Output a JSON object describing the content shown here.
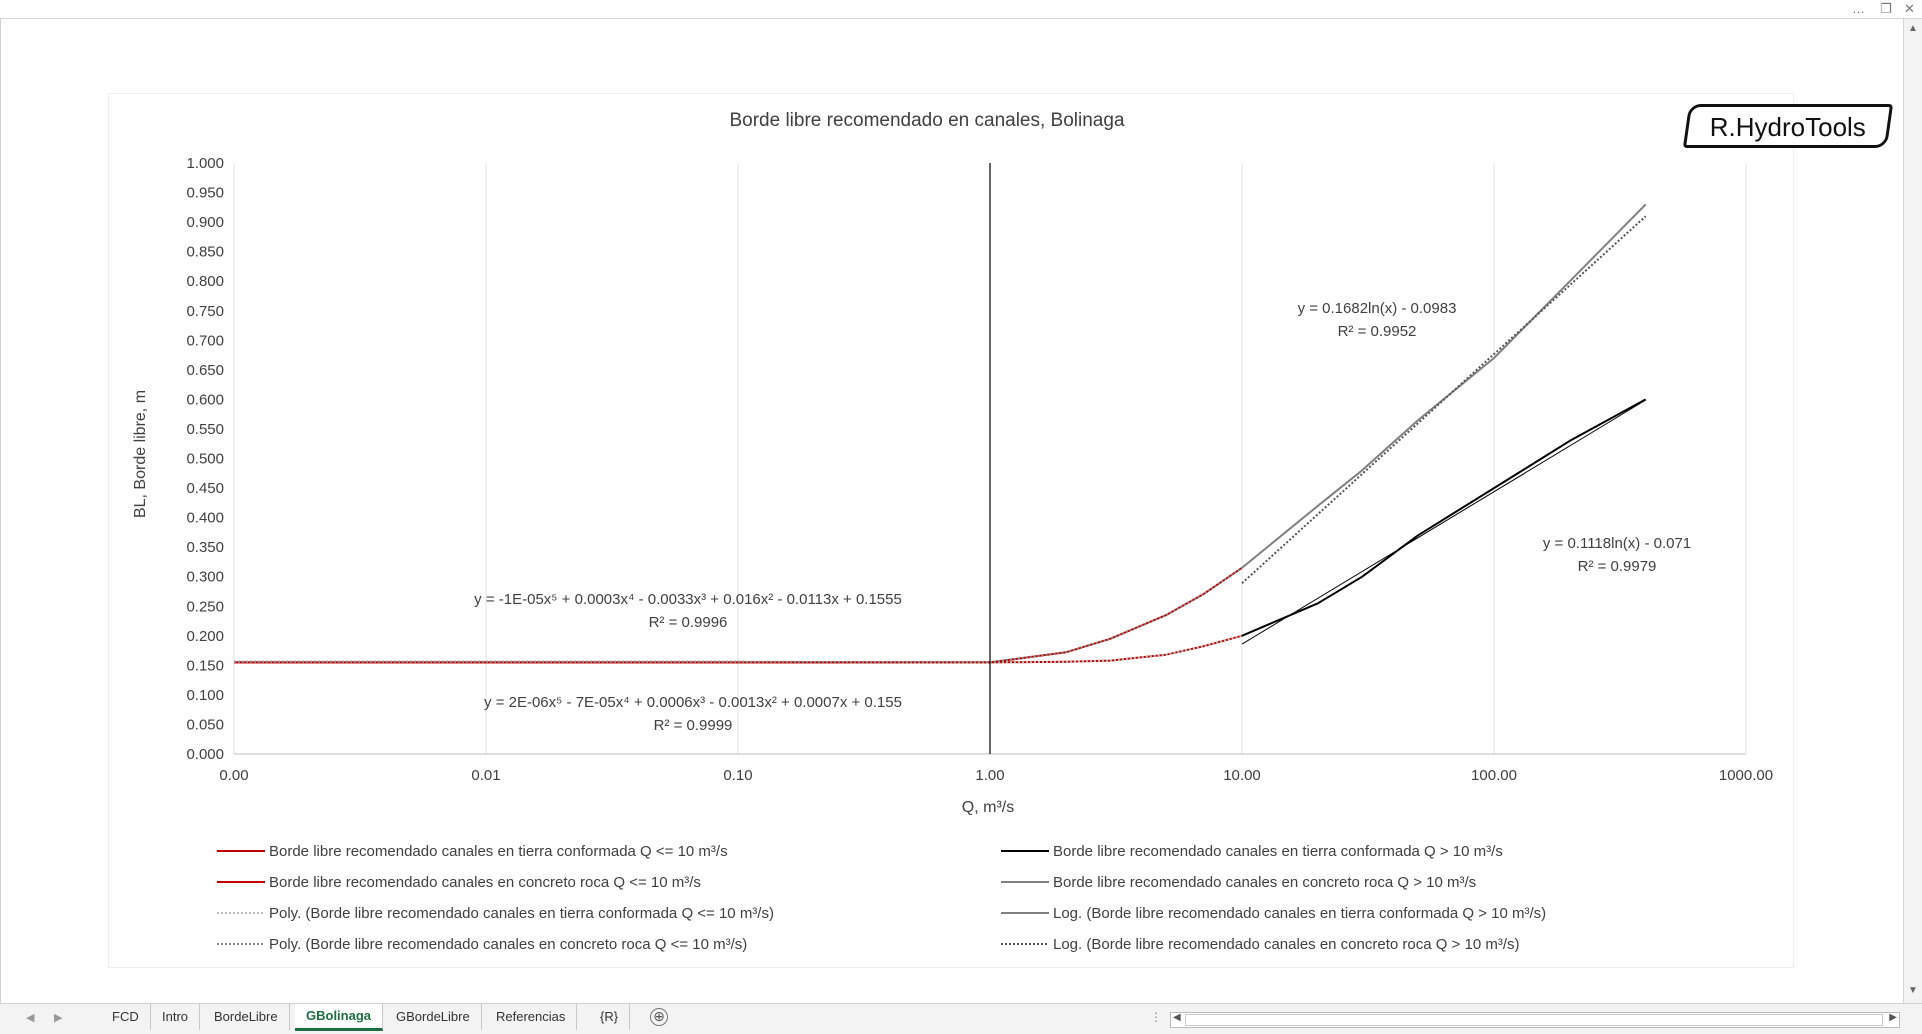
{
  "window": {
    "more_icon": "…",
    "restore_icon": "❐",
    "close_icon": "✕"
  },
  "chart": {
    "logo": "R.HydroTools"
  },
  "chart_data": {
    "type": "line",
    "title": "Borde libre recomendado en canales, Bolinaga",
    "xlabel": "Q, m³/s",
    "ylabel": "BL, Borde libre, m",
    "x_scale": "log",
    "xlim": [
      0.001,
      1000
    ],
    "ylim": [
      0,
      1
    ],
    "x_tick_labels": [
      "0.00",
      "0.01",
      "0.10",
      "1.00",
      "10.00",
      "100.00",
      "1000.00"
    ],
    "y_tick_labels": [
      "1.000",
      "0.950",
      "0.900",
      "0.850",
      "0.800",
      "0.750",
      "0.700",
      "0.650",
      "0.600",
      "0.550",
      "0.500",
      "0.450",
      "0.400",
      "0.350",
      "0.300",
      "0.250",
      "0.200",
      "0.150",
      "0.100",
      "0.050",
      "0.000"
    ],
    "grid": "vertical",
    "legend_position": "bottom",
    "series": [
      {
        "name": "Borde libre recomendado canales en tierra conformada Q <= 10 m³/s",
        "color": "#c00000",
        "style": "solid",
        "x": [
          0.001,
          0.01,
          0.1,
          1,
          2,
          3,
          5,
          7,
          10
        ],
        "y": [
          0.155,
          0.155,
          0.155,
          0.155,
          0.156,
          0.158,
          0.168,
          0.182,
          0.2
        ]
      },
      {
        "name": "Borde libre recomendado canales en concreto roca Q <= 10 m³/s",
        "color": "#c00000",
        "style": "solid",
        "x": [
          0.001,
          0.01,
          0.1,
          1,
          2,
          3,
          5,
          7,
          10
        ],
        "y": [
          0.155,
          0.155,
          0.155,
          0.155,
          0.172,
          0.195,
          0.235,
          0.27,
          0.315
        ]
      },
      {
        "name": "Poly. (Borde libre recomendado canales en tierra conformada Q <= 10 m³/s)",
        "color": "#bbbbbb",
        "style": "dotted",
        "x": [
          0.001,
          0.01,
          0.1,
          1,
          2,
          3,
          5,
          7,
          10
        ],
        "y": [
          0.156,
          0.156,
          0.156,
          0.155,
          0.156,
          0.158,
          0.168,
          0.182,
          0.2
        ]
      },
      {
        "name": "Poly. (Borde libre recomendado canales en concreto roca Q <= 10 m³/s)",
        "color": "#888888",
        "style": "dotted",
        "x": [
          0.001,
          0.01,
          0.1,
          1,
          2,
          3,
          5,
          7,
          10
        ],
        "y": [
          0.156,
          0.156,
          0.156,
          0.155,
          0.172,
          0.195,
          0.235,
          0.27,
          0.315
        ]
      },
      {
        "name": "Borde libre recomendado canales en tierra conformada Q > 10 m³/s",
        "color": "#000000",
        "style": "solid",
        "x": [
          10,
          20,
          30,
          50,
          100,
          200,
          400
        ],
        "y": [
          0.2,
          0.255,
          0.3,
          0.37,
          0.45,
          0.53,
          0.6
        ]
      },
      {
        "name": "Borde libre recomendado canales en concreto roca Q > 10 m³/s",
        "color": "#808080",
        "style": "solid",
        "x": [
          10,
          20,
          30,
          50,
          100,
          200,
          400
        ],
        "y": [
          0.315,
          0.42,
          0.48,
          0.565,
          0.67,
          0.8,
          0.93
        ]
      },
      {
        "name": "Log. (Borde libre recomendado canales en tierra conformada Q > 10 m³/s)",
        "color": "#000000",
        "style": "solid-thin",
        "x": [
          10,
          400
        ],
        "y": [
          0.186,
          0.599
        ]
      },
      {
        "name": "Log. (Borde libre recomendado canales en concreto roca Q > 10 m³/s)",
        "color": "#555555",
        "style": "dotted",
        "x": [
          10,
          400
        ],
        "y": [
          0.289,
          0.91
        ]
      }
    ],
    "annotations": [
      {
        "line1": "y = 0.1682ln(x) - 0.0983",
        "line2": "R² = 0.9952"
      },
      {
        "line1": "y = 0.1118ln(x) - 0.071",
        "line2": "R² = 0.9979"
      },
      {
        "line1": "y = -1E-05x⁵ + 0.0003x⁴ - 0.0033x³ + 0.016x² - 0.0113x + 0.1555",
        "line2": "R² = 0.9996"
      },
      {
        "line1": "y = 2E-06x⁵ - 7E-05x⁴ + 0.0006x³ - 0.0013x² + 0.0007x + 0.155",
        "line2": "R² = 0.9999"
      }
    ]
  },
  "sheet_tabs": [
    "FCD",
    "Intro",
    "BordeLibre",
    "GBolinaga",
    "GBordeLibre",
    "Referencias",
    "{R}"
  ],
  "active_tab": "GBolinaga",
  "add_sheet": "⊕"
}
